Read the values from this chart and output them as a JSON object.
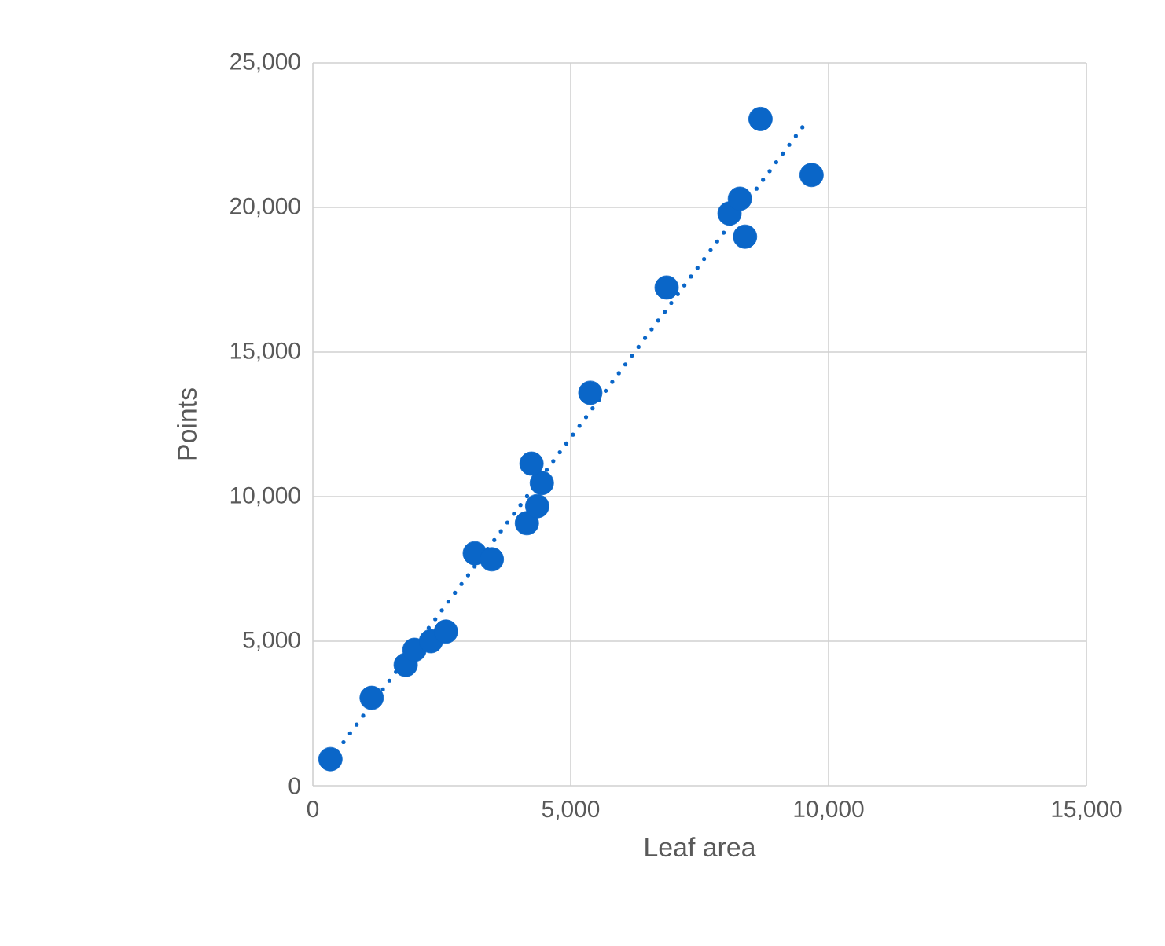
{
  "chart_data": {
    "type": "scatter",
    "xlabel": "Leaf area",
    "ylabel": "Points",
    "xlim": [
      0,
      15000
    ],
    "ylim": [
      0,
      25000
    ],
    "xticks": [
      {
        "value": 0,
        "label": "0"
      },
      {
        "value": 5000,
        "label": "5,000"
      },
      {
        "value": 10000,
        "label": "10,000"
      },
      {
        "value": 15000,
        "label": "15,000"
      }
    ],
    "yticks": [
      {
        "value": 0,
        "label": "0"
      },
      {
        "value": 5000,
        "label": "5,000"
      },
      {
        "value": 10000,
        "label": "10,000"
      },
      {
        "value": 15000,
        "label": "15,000"
      },
      {
        "value": 20000,
        "label": "20,000"
      },
      {
        "value": 25000,
        "label": "25,000"
      }
    ],
    "grid": true,
    "series": [
      {
        "color": "#0a66c8",
        "marker": "circle",
        "x": [
          340,
          1140,
          1800,
          1970,
          2290,
          2580,
          3140,
          3470,
          4150,
          4350,
          4440,
          4240,
          5380,
          6860,
          8080,
          8280,
          8380,
          8680,
          9670
        ],
        "values": [
          920,
          3040,
          4180,
          4700,
          5000,
          5330,
          8040,
          7830,
          9080,
          9670,
          10470,
          11140,
          13590,
          17230,
          19790,
          20300,
          18990,
          23060,
          21120
        ]
      },
      {
        "type": "line",
        "color": "#0a66c8",
        "line_style": "dotted",
        "marker": "none",
        "x": [
          340,
          9570
        ],
        "values": [
          900,
          22960
        ]
      }
    ]
  }
}
